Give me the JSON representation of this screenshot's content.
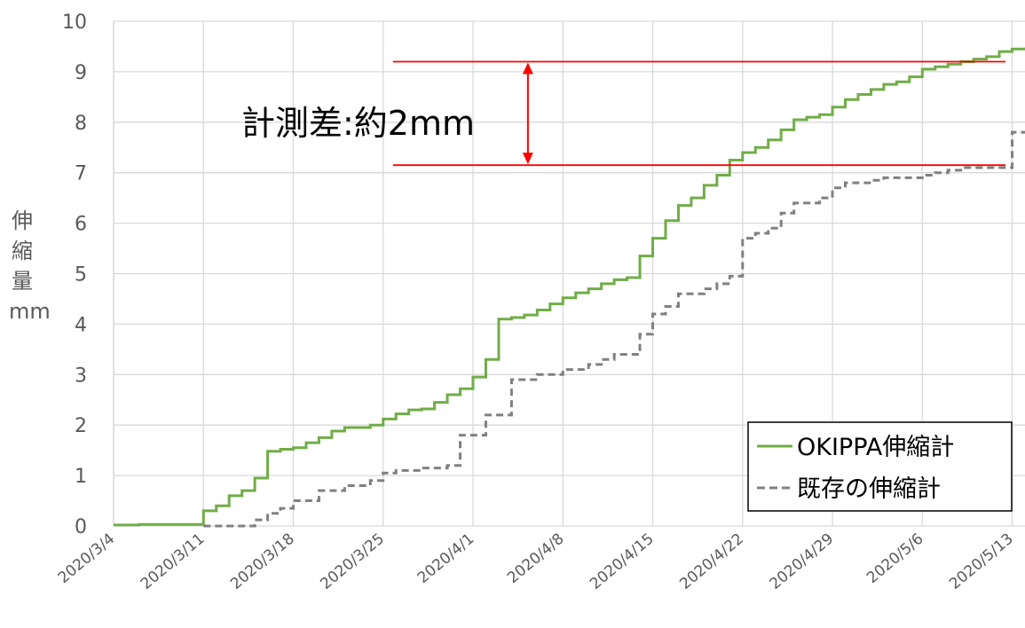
{
  "chart_data": {
    "type": "line",
    "line_style": "step",
    "ylabel_chars": [
      "伸",
      "縮",
      "量",
      "mm"
    ],
    "ylim": [
      0,
      10
    ],
    "yticks": [
      "0",
      "1",
      "2",
      "3",
      "4",
      "5",
      "6",
      "7",
      "8",
      "9",
      "10"
    ],
    "xlim": [
      "2020/3/4",
      "2020/5/14"
    ],
    "xticks": [
      "2020/3/4",
      "2020/3/11",
      "2020/3/18",
      "2020/3/25",
      "2020/4/1",
      "2020/4/8",
      "2020/4/15",
      "2020/4/22",
      "2020/4/29",
      "2020/5/6",
      "2020/5/13"
    ],
    "grid": {
      "x": true,
      "y": true
    },
    "legend": {
      "placement": "bottom-right"
    },
    "annotation": {
      "text": "計測差:約2mm",
      "upper_y": 9.2,
      "lower_y": 7.15,
      "x_start": "2020/3/25",
      "x_end": "2020/5/12",
      "arrow_x": "2020/4/5",
      "color": "#ff0000"
    },
    "series": [
      {
        "name": "OKIPPA伸縮計",
        "color": "#70ad47",
        "style": "solid",
        "points": [
          [
            "2020/3/4",
            0.02
          ],
          [
            "2020/3/6",
            0.03
          ],
          [
            "2020/3/8",
            0.03
          ],
          [
            "2020/3/11",
            0.05
          ],
          [
            "2020/3/11",
            0.3
          ],
          [
            "2020/3/12",
            0.4
          ],
          [
            "2020/3/13",
            0.6
          ],
          [
            "2020/3/14",
            0.7
          ],
          [
            "2020/3/15",
            0.95
          ],
          [
            "2020/3/16",
            1.48
          ],
          [
            "2020/3/17",
            1.52
          ],
          [
            "2020/3/18",
            1.55
          ],
          [
            "2020/3/19",
            1.65
          ],
          [
            "2020/3/20",
            1.75
          ],
          [
            "2020/3/21",
            1.88
          ],
          [
            "2020/3/22",
            1.95
          ],
          [
            "2020/3/24",
            2.0
          ],
          [
            "2020/3/25",
            2.12
          ],
          [
            "2020/3/26",
            2.22
          ],
          [
            "2020/3/27",
            2.3
          ],
          [
            "2020/3/28",
            2.32
          ],
          [
            "2020/3/29",
            2.45
          ],
          [
            "2020/3/30",
            2.6
          ],
          [
            "2020/3/31",
            2.72
          ],
          [
            "2020/4/1",
            2.95
          ],
          [
            "2020/4/2",
            3.3
          ],
          [
            "2020/4/3",
            4.1
          ],
          [
            "2020/4/4",
            4.13
          ],
          [
            "2020/4/5",
            4.18
          ],
          [
            "2020/4/6",
            4.28
          ],
          [
            "2020/4/7",
            4.4
          ],
          [
            "2020/4/8",
            4.52
          ],
          [
            "2020/4/9",
            4.62
          ],
          [
            "2020/4/10",
            4.7
          ],
          [
            "2020/4/11",
            4.8
          ],
          [
            "2020/4/12",
            4.88
          ],
          [
            "2020/4/13",
            4.92
          ],
          [
            "2020/4/14",
            5.35
          ],
          [
            "2020/4/15",
            5.7
          ],
          [
            "2020/4/16",
            6.05
          ],
          [
            "2020/4/17",
            6.35
          ],
          [
            "2020/4/18",
            6.5
          ],
          [
            "2020/4/19",
            6.75
          ],
          [
            "2020/4/20",
            6.95
          ],
          [
            "2020/4/21",
            7.25
          ],
          [
            "2020/4/22",
            7.4
          ],
          [
            "2020/4/23",
            7.5
          ],
          [
            "2020/4/24",
            7.65
          ],
          [
            "2020/4/25",
            7.85
          ],
          [
            "2020/4/26",
            8.05
          ],
          [
            "2020/4/27",
            8.1
          ],
          [
            "2020/4/28",
            8.15
          ],
          [
            "2020/4/29",
            8.3
          ],
          [
            "2020/4/30",
            8.45
          ],
          [
            "2020/5/1",
            8.55
          ],
          [
            "2020/5/2",
            8.65
          ],
          [
            "2020/5/3",
            8.75
          ],
          [
            "2020/5/4",
            8.8
          ],
          [
            "2020/5/5",
            8.9
          ],
          [
            "2020/5/6",
            9.05
          ],
          [
            "2020/5/7",
            9.1
          ],
          [
            "2020/5/8",
            9.15
          ],
          [
            "2020/5/9",
            9.2
          ],
          [
            "2020/5/10",
            9.25
          ],
          [
            "2020/5/11",
            9.3
          ],
          [
            "2020/5/12",
            9.4
          ],
          [
            "2020/5/13",
            9.45
          ],
          [
            "2020/5/14",
            9.48
          ]
        ]
      },
      {
        "name": "既存の伸縮計",
        "color": "#808080",
        "style": "dashed",
        "points": [
          [
            "2020/3/11",
            0.0
          ],
          [
            "2020/3/14",
            0.0
          ],
          [
            "2020/3/15",
            0.12
          ],
          [
            "2020/3/16",
            0.25
          ],
          [
            "2020/3/17",
            0.35
          ],
          [
            "2020/3/18",
            0.5
          ],
          [
            "2020/3/20",
            0.7
          ],
          [
            "2020/3/22",
            0.8
          ],
          [
            "2020/3/24",
            0.9
          ],
          [
            "2020/3/25",
            1.05
          ],
          [
            "2020/3/26",
            1.1
          ],
          [
            "2020/3/28",
            1.15
          ],
          [
            "2020/3/30",
            1.2
          ],
          [
            "2020/3/31",
            1.8
          ],
          [
            "2020/4/2",
            2.2
          ],
          [
            "2020/4/4",
            2.9
          ],
          [
            "2020/4/6",
            3.0
          ],
          [
            "2020/4/8",
            3.1
          ],
          [
            "2020/4/10",
            3.2
          ],
          [
            "2020/4/11",
            3.3
          ],
          [
            "2020/4/12",
            3.4
          ],
          [
            "2020/4/14",
            3.8
          ],
          [
            "2020/4/15",
            4.2
          ],
          [
            "2020/4/16",
            4.35
          ],
          [
            "2020/4/17",
            4.6
          ],
          [
            "2020/4/19",
            4.7
          ],
          [
            "2020/4/20",
            4.8
          ],
          [
            "2020/4/21",
            4.95
          ],
          [
            "2020/4/22",
            5.7
          ],
          [
            "2020/4/23",
            5.8
          ],
          [
            "2020/4/24",
            5.9
          ],
          [
            "2020/4/25",
            6.2
          ],
          [
            "2020/4/26",
            6.4
          ],
          [
            "2020/4/28",
            6.5
          ],
          [
            "2020/4/29",
            6.7
          ],
          [
            "2020/4/30",
            6.8
          ],
          [
            "2020/5/2",
            6.85
          ],
          [
            "2020/5/3",
            6.9
          ],
          [
            "2020/5/6",
            6.95
          ],
          [
            "2020/5/7",
            7.0
          ],
          [
            "2020/5/8",
            7.05
          ],
          [
            "2020/5/9",
            7.1
          ],
          [
            "2020/5/12",
            7.1
          ],
          [
            "2020/5/13",
            7.8
          ],
          [
            "2020/5/14",
            7.8
          ]
        ]
      }
    ]
  }
}
